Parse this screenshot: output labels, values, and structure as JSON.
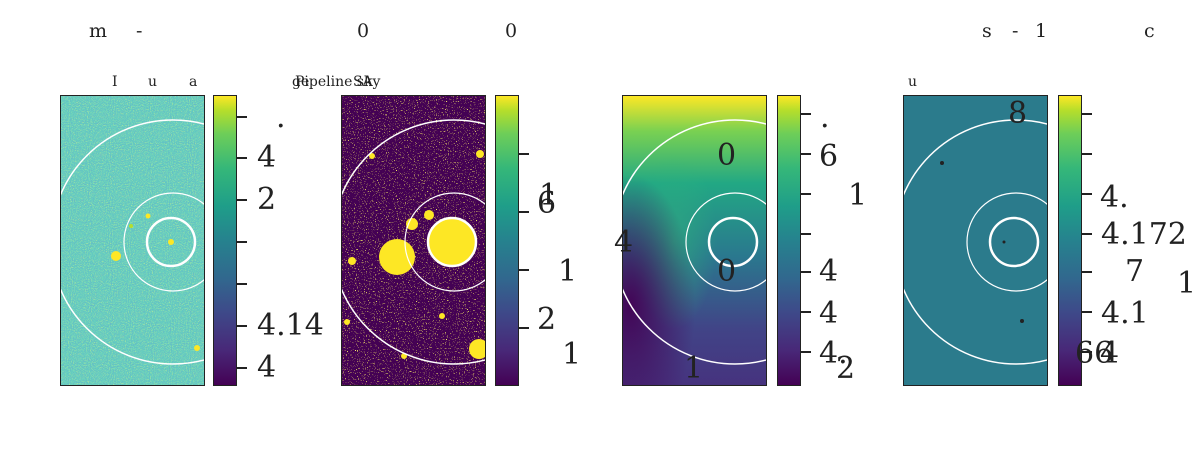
{
  "header": {
    "top_fragments": [
      "m",
      "-",
      "0",
      "0",
      "s",
      "-",
      "1",
      "c"
    ],
    "sub_fragments": [
      "I",
      "u",
      "a",
      "Pipeline sky",
      "ge",
      "SA",
      "u"
    ]
  },
  "panel1": {
    "cbar_labels": [
      ".",
      "4",
      "2",
      "4.14",
      "4"
    ]
  },
  "panel2": {
    "cbar_labels": [
      "1",
      "6",
      "1",
      "2",
      "1"
    ]
  },
  "panel3": {
    "inner_labels": [
      "0",
      "0",
      "1"
    ],
    "left_label": "4",
    "cbar_labels": [
      ".",
      "6",
      "1",
      "4",
      "4",
      "4.",
      "2"
    ]
  },
  "panel4": {
    "inner_label": "8",
    "cbar_labels": [
      "4.",
      "4.172",
      "7",
      "4.1",
      "66",
      "4",
      "1"
    ]
  },
  "colors": {
    "viridis_dark": "#440154",
    "viridis_teal": "#2a7a8a",
    "viridis_yellow": "#fde725",
    "ring": "#ffffff"
  }
}
